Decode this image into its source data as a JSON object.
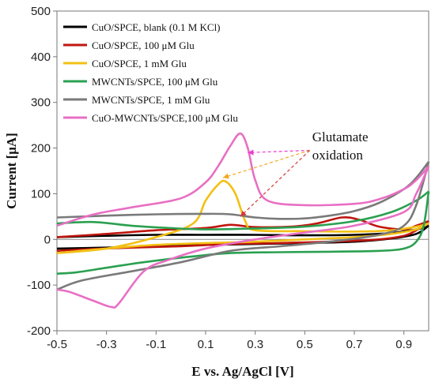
{
  "chart_data": {
    "type": "line",
    "title": "",
    "xlabel": "E vs. Ag/AgCl [V]",
    "ylabel": "Current [μA]",
    "xlim": [
      -0.5,
      1.0
    ],
    "ylim": [
      -200,
      500
    ],
    "xticks": [
      -0.5,
      -0.3,
      -0.1,
      0.1,
      0.3,
      0.5,
      0.7,
      0.9
    ],
    "xtick_labels": [
      "-0.5",
      "-0.3",
      "-0.1",
      "0.1",
      "0.3",
      "0.5",
      "0.7",
      "0.9"
    ],
    "yticks": [
      -200,
      -100,
      0,
      100,
      200,
      300,
      400,
      500
    ],
    "ytick_labels": [
      "-200",
      "-100",
      "0",
      "100",
      "200",
      "300",
      "400",
      "500"
    ],
    "grid": false,
    "legend_position": "top-left",
    "series": [
      {
        "name": "CuO/SPCE, blank (0.1 M KCl)",
        "color": "#000000",
        "forward": [
          [
            -0.5,
            5
          ],
          [
            -0.3,
            8
          ],
          [
            -0.1,
            10
          ],
          [
            0.1,
            10
          ],
          [
            0.3,
            10
          ],
          [
            0.5,
            9
          ],
          [
            0.7,
            10
          ],
          [
            0.85,
            14
          ],
          [
            0.95,
            22
          ],
          [
            1.0,
            30
          ]
        ],
        "reverse": [
          [
            1.0,
            30
          ],
          [
            0.95,
            12
          ],
          [
            0.85,
            2
          ],
          [
            0.7,
            -5
          ],
          [
            0.5,
            -8
          ],
          [
            0.3,
            -10
          ],
          [
            0.1,
            -12
          ],
          [
            -0.1,
            -15
          ],
          [
            -0.3,
            -18
          ],
          [
            -0.5,
            -20
          ]
        ]
      },
      {
        "name": "CuO/SPCE, 100 μM Glu",
        "color": "#c0150f",
        "forward": [
          [
            -0.5,
            5
          ],
          [
            -0.3,
            12
          ],
          [
            -0.1,
            20
          ],
          [
            0.1,
            25
          ],
          [
            0.2,
            32
          ],
          [
            0.3,
            27
          ],
          [
            0.45,
            28
          ],
          [
            0.55,
            35
          ],
          [
            0.65,
            48
          ],
          [
            0.72,
            43
          ],
          [
            0.8,
            28
          ],
          [
            0.9,
            22
          ],
          [
            0.95,
            30
          ],
          [
            1.0,
            40
          ]
        ],
        "reverse": [
          [
            1.0,
            40
          ],
          [
            0.95,
            20
          ],
          [
            0.9,
            8
          ],
          [
            0.8,
            0
          ],
          [
            0.6,
            -5
          ],
          [
            0.4,
            -8
          ],
          [
            0.2,
            -10
          ],
          [
            0.0,
            -15
          ],
          [
            -0.2,
            -18
          ],
          [
            -0.4,
            -22
          ],
          [
            -0.5,
            -25
          ]
        ]
      },
      {
        "name": "CuO/SPCE, 1 mM Glu",
        "color": "#f2c014",
        "forward": [
          [
            -0.5,
            -30
          ],
          [
            -0.3,
            -20
          ],
          [
            -0.1,
            5
          ],
          [
            0.05,
            35
          ],
          [
            0.1,
            85
          ],
          [
            0.15,
            120
          ],
          [
            0.18,
            127
          ],
          [
            0.22,
            100
          ],
          [
            0.26,
            40
          ],
          [
            0.3,
            20
          ],
          [
            0.5,
            18
          ],
          [
            0.7,
            17
          ],
          [
            0.85,
            20
          ],
          [
            0.95,
            28
          ],
          [
            1.0,
            35
          ]
        ],
        "reverse": [
          [
            1.0,
            35
          ],
          [
            0.95,
            22
          ],
          [
            0.85,
            12
          ],
          [
            0.7,
            5
          ],
          [
            0.5,
            0
          ],
          [
            0.3,
            -5
          ],
          [
            0.1,
            -8
          ],
          [
            -0.1,
            -12
          ],
          [
            -0.3,
            -20
          ],
          [
            -0.5,
            -30
          ]
        ]
      },
      {
        "name": "MWCNTs/SPCE, 100 μM Glu",
        "color": "#2aa050",
        "forward": [
          [
            -0.5,
            35
          ],
          [
            -0.35,
            38
          ],
          [
            -0.2,
            30
          ],
          [
            -0.05,
            25
          ],
          [
            0.1,
            22
          ],
          [
            0.3,
            24
          ],
          [
            0.5,
            28
          ],
          [
            0.7,
            40
          ],
          [
            0.85,
            60
          ],
          [
            0.95,
            85
          ],
          [
            1.0,
            105
          ]
        ],
        "reverse": [
          [
            1.0,
            105
          ],
          [
            0.98,
            30
          ],
          [
            0.95,
            -5
          ],
          [
            0.9,
            -20
          ],
          [
            0.8,
            -25
          ],
          [
            0.6,
            -27
          ],
          [
            0.4,
            -28
          ],
          [
            0.2,
            -30
          ],
          [
            0.0,
            -40
          ],
          [
            -0.15,
            -50
          ],
          [
            -0.3,
            -62
          ],
          [
            -0.42,
            -72
          ],
          [
            -0.5,
            -75
          ]
        ]
      },
      {
        "name": "MWCNTs/SPCE, 1 mM Glu",
        "color": "#7a7a7a",
        "forward": [
          [
            -0.5,
            48
          ],
          [
            -0.3,
            52
          ],
          [
            -0.1,
            55
          ],
          [
            0.1,
            56
          ],
          [
            0.2,
            55
          ],
          [
            0.3,
            48
          ],
          [
            0.4,
            45
          ],
          [
            0.5,
            46
          ],
          [
            0.6,
            52
          ],
          [
            0.7,
            62
          ],
          [
            0.8,
            80
          ],
          [
            0.9,
            110
          ],
          [
            0.95,
            135
          ],
          [
            1.0,
            170
          ]
        ],
        "reverse": [
          [
            1.0,
            170
          ],
          [
            0.95,
            75
          ],
          [
            0.9,
            30
          ],
          [
            0.8,
            10
          ],
          [
            0.6,
            -5
          ],
          [
            0.4,
            -15
          ],
          [
            0.2,
            -25
          ],
          [
            0.0,
            -50
          ],
          [
            -0.2,
            -70
          ],
          [
            -0.4,
            -90
          ],
          [
            -0.5,
            -110
          ]
        ]
      },
      {
        "name": "CuO-MWCNTs/SPCE,100 μM Glu",
        "color": "#e86fc4",
        "forward": [
          [
            -0.5,
            30
          ],
          [
            -0.35,
            55
          ],
          [
            -0.2,
            70
          ],
          [
            0.0,
            90
          ],
          [
            0.1,
            125
          ],
          [
            0.15,
            160
          ],
          [
            0.2,
            205
          ],
          [
            0.24,
            232
          ],
          [
            0.27,
            200
          ],
          [
            0.3,
            130
          ],
          [
            0.35,
            85
          ],
          [
            0.5,
            75
          ],
          [
            0.7,
            78
          ],
          [
            0.8,
            88
          ],
          [
            0.9,
            110
          ],
          [
            0.95,
            130
          ],
          [
            1.0,
            160
          ]
        ],
        "reverse": [
          [
            1.0,
            160
          ],
          [
            0.95,
            100
          ],
          [
            0.9,
            60
          ],
          [
            0.7,
            30
          ],
          [
            0.5,
            15
          ],
          [
            0.3,
            0
          ],
          [
            0.1,
            -20
          ],
          [
            -0.05,
            -45
          ],
          [
            -0.15,
            -70
          ],
          [
            -0.25,
            -140
          ],
          [
            -0.28,
            -148
          ],
          [
            -0.35,
            -135
          ],
          [
            -0.45,
            -115
          ],
          [
            -0.5,
            -110
          ]
        ]
      }
    ],
    "annotations": [
      {
        "text": "Glutamate",
        "x": 0.53,
        "y": 215
      },
      {
        "text": "oxidation",
        "x": 0.53,
        "y": 175
      }
    ]
  }
}
